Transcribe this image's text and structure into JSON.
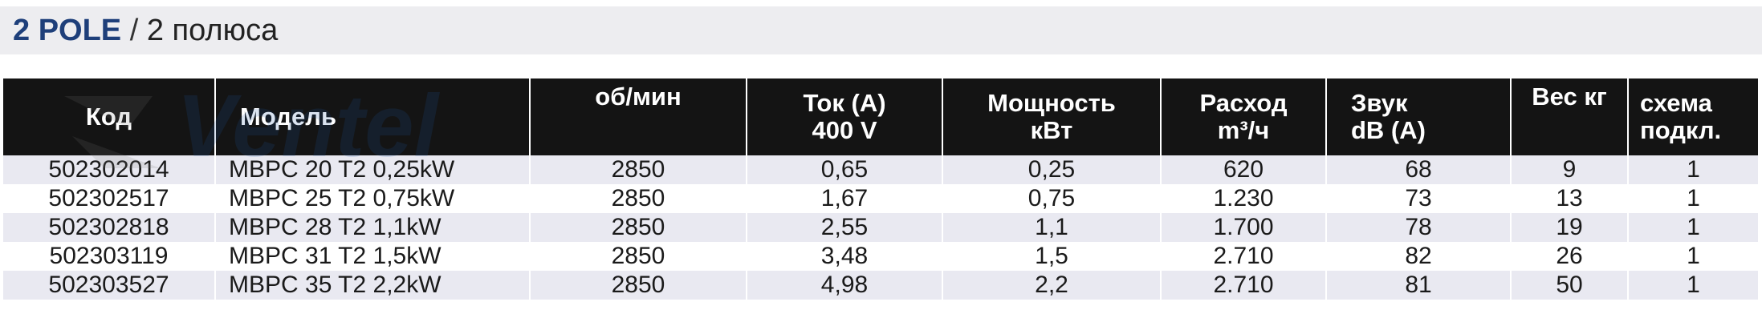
{
  "title": {
    "bold": "2 POLE",
    "separator": " / ",
    "rest": "2 полюса"
  },
  "table": {
    "headers": [
      {
        "line1": "Код",
        "line2": ""
      },
      {
        "line1": "Модель",
        "line2": ""
      },
      {
        "line1": "об/мин",
        "line2": ""
      },
      {
        "line1": "Ток (А)",
        "line2": "400 V"
      },
      {
        "line1": "Мощность",
        "line2": "кВт"
      },
      {
        "line1": "Расход",
        "line2": "m³/ч"
      },
      {
        "line1": "Звук",
        "line2": "dB (A)"
      },
      {
        "line1": "Вес кг",
        "line2": ""
      },
      {
        "line1": "схема",
        "line2": "подкл."
      }
    ],
    "rows": [
      [
        "502302014",
        "MBPC 20 T2 0,25kW",
        "2850",
        "0,65",
        "0,25",
        "620",
        "68",
        "9",
        "1"
      ],
      [
        "502302517",
        "MBPC 25 T2 0,75kW",
        "2850",
        "1,67",
        "0,75",
        "1.230",
        "73",
        "13",
        "1"
      ],
      [
        "502302818",
        "MBPC 28 T2 1,1kW",
        "2850",
        "2,55",
        "1,1",
        "1.700",
        "78",
        "19",
        "1"
      ],
      [
        "502303119",
        "MBPC 31 T2 1,5kW",
        "2850",
        "3,48",
        "1,5",
        "2.710",
        "82",
        "26",
        "1"
      ],
      [
        "502303527",
        "MBPC 35 T2 2,2kW",
        "2850",
        "4,98",
        "2,2",
        "2.710",
        "81",
        "50",
        "1"
      ]
    ]
  },
  "watermark": {
    "icon": "fan-logo-icon",
    "text": "Ventel",
    "color": "#1e5aa8"
  }
}
